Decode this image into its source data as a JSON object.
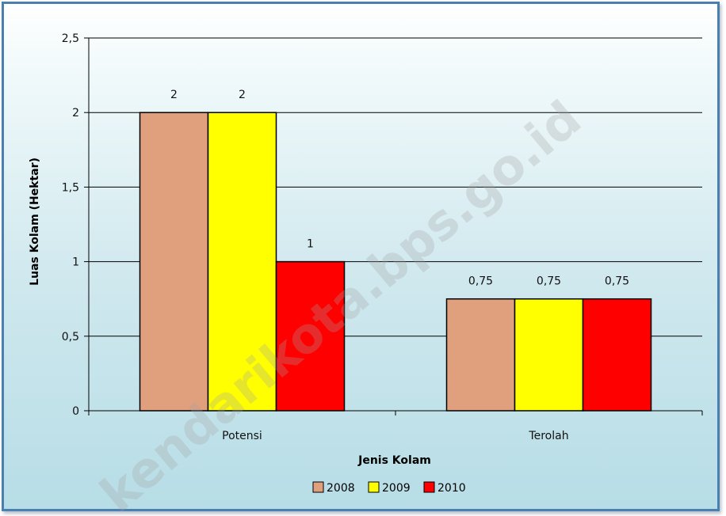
{
  "chart_data": {
    "type": "bar",
    "categories": [
      "Potensi",
      "Terolah"
    ],
    "series": [
      {
        "name": "2008",
        "values": [
          2,
          0.75
        ],
        "color": "#E0A07E",
        "labels": [
          "2",
          "0,75"
        ]
      },
      {
        "name": "2009",
        "values": [
          2,
          0.75
        ],
        "color": "#FFFF00",
        "labels": [
          "2",
          "0,75"
        ]
      },
      {
        "name": "2010",
        "values": [
          1,
          0.75
        ],
        "color": "#FF0000",
        "labels": [
          "1",
          "0,75"
        ]
      }
    ],
    "title": "",
    "xlabel": "Jenis Kolam",
    "ylabel": "Luas Kolam (Hektar)",
    "ylim": [
      0,
      2.5
    ],
    "yticks": [
      0,
      0.5,
      1,
      1.5,
      2,
      2.5
    ],
    "ytick_labels": [
      "0",
      "0,5",
      "1",
      "1,5",
      "2",
      "2,5"
    ],
    "grid": true,
    "legend_position": "bottom"
  },
  "watermark": "kendarikota.bps.go.id"
}
